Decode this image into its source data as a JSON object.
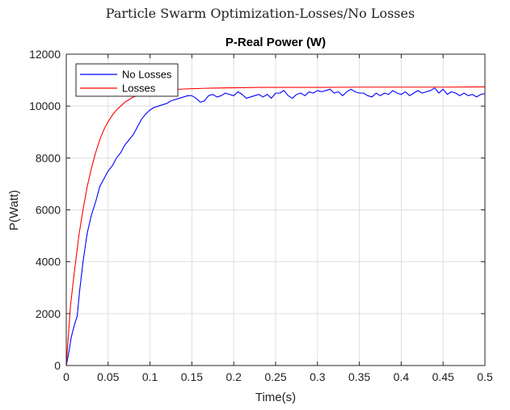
{
  "figure": {
    "suptitle": "Particle Swarm Optimization-Losses/No Losses"
  },
  "chart_data": {
    "type": "line",
    "title": "P-Real Power (W)",
    "xlabel": "Time(s)",
    "ylabel": "P(Watt)",
    "xlim": [
      0,
      0.5
    ],
    "ylim": [
      0,
      12000
    ],
    "xticks": [
      0,
      0.05,
      0.1,
      0.15,
      0.2,
      0.25,
      0.3,
      0.35,
      0.4,
      0.45,
      0.5
    ],
    "xtick_labels": [
      "0",
      "0.05",
      "0.1",
      "0.15",
      "0.2",
      "0.25",
      "0.3",
      "0.35",
      "0.4",
      "0.45",
      "0.5"
    ],
    "yticks": [
      0,
      2000,
      4000,
      6000,
      8000,
      10000,
      12000
    ],
    "ytick_labels": [
      "0",
      "2000",
      "4000",
      "6000",
      "8000",
      "10000",
      "12000"
    ],
    "grid": true,
    "legend_position": "top-left",
    "series": [
      {
        "name": "No Losses",
        "color": "#0000ff",
        "x": [
          0,
          0.003,
          0.006,
          0.01,
          0.013,
          0.016,
          0.02,
          0.025,
          0.03,
          0.035,
          0.04,
          0.045,
          0.05,
          0.055,
          0.06,
          0.065,
          0.07,
          0.075,
          0.08,
          0.085,
          0.09,
          0.095,
          0.1,
          0.105,
          0.11,
          0.115,
          0.12,
          0.125,
          0.13,
          0.135,
          0.14,
          0.145,
          0.15,
          0.155,
          0.16,
          0.165,
          0.17,
          0.175,
          0.18,
          0.185,
          0.19,
          0.195,
          0.2,
          0.205,
          0.21,
          0.215,
          0.22,
          0.225,
          0.23,
          0.235,
          0.24,
          0.245,
          0.25,
          0.255,
          0.26,
          0.265,
          0.27,
          0.275,
          0.28,
          0.285,
          0.29,
          0.295,
          0.3,
          0.305,
          0.31,
          0.315,
          0.32,
          0.325,
          0.33,
          0.335,
          0.34,
          0.345,
          0.35,
          0.355,
          0.36,
          0.365,
          0.37,
          0.375,
          0.38,
          0.385,
          0.39,
          0.395,
          0.4,
          0.405,
          0.41,
          0.415,
          0.42,
          0.425,
          0.43,
          0.435,
          0.44,
          0.445,
          0.45,
          0.455,
          0.46,
          0.465,
          0.47,
          0.475,
          0.48,
          0.485,
          0.49,
          0.495,
          0.5
        ],
        "y": [
          0,
          500,
          1100,
          1600,
          1900,
          2900,
          4000,
          5100,
          5800,
          6300,
          6900,
          7200,
          7500,
          7700,
          8000,
          8200,
          8500,
          8700,
          8900,
          9200,
          9500,
          9700,
          9850,
          9950,
          10000,
          10050,
          10100,
          10200,
          10250,
          10300,
          10350,
          10400,
          10400,
          10300,
          10150,
          10200,
          10400,
          10450,
          10350,
          10400,
          10500,
          10450,
          10400,
          10550,
          10450,
          10300,
          10350,
          10400,
          10450,
          10350,
          10450,
          10300,
          10500,
          10500,
          10600,
          10400,
          10300,
          10450,
          10500,
          10400,
          10550,
          10500,
          10600,
          10550,
          10600,
          10650,
          10500,
          10550,
          10400,
          10550,
          10650,
          10550,
          10500,
          10500,
          10400,
          10350,
          10500,
          10400,
          10500,
          10450,
          10600,
          10500,
          10450,
          10550,
          10400,
          10500,
          10600,
          10500,
          10550,
          10600,
          10700,
          10500,
          10650,
          10450,
          10550,
          10500,
          10400,
          10500,
          10400,
          10450,
          10350,
          10450,
          10480
        ]
      },
      {
        "name": "Losses",
        "color": "#ff0000",
        "x": [
          0,
          0.005,
          0.01,
          0.015,
          0.02,
          0.025,
          0.03,
          0.035,
          0.04,
          0.045,
          0.05,
          0.055,
          0.06,
          0.065,
          0.07,
          0.075,
          0.08,
          0.085,
          0.09,
          0.095,
          0.1,
          0.105,
          0.11,
          0.12,
          0.13,
          0.14,
          0.15,
          0.17,
          0.19,
          0.21,
          0.23,
          0.25,
          0.3,
          0.35,
          0.4,
          0.45,
          0.5
        ],
        "y": [
          0,
          2300,
          3700,
          5000,
          6000,
          6900,
          7600,
          8200,
          8700,
          9100,
          9400,
          9650,
          9850,
          10000,
          10150,
          10250,
          10350,
          10400,
          10450,
          10500,
          10530,
          10560,
          10580,
          10620,
          10640,
          10660,
          10670,
          10690,
          10700,
          10710,
          10720,
          10720,
          10720,
          10730,
          10730,
          10730,
          10740
        ]
      }
    ]
  }
}
